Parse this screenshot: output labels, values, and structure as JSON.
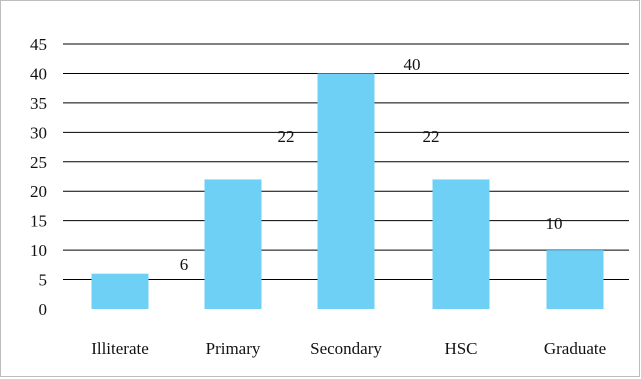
{
  "chart_data": {
    "type": "bar",
    "categories": [
      "Illiterate",
      "Primary",
      "Secondary",
      "HSC",
      "Graduate"
    ],
    "values": [
      6,
      22,
      40,
      22,
      10
    ],
    "data_labels": [
      "6",
      "22",
      "40",
      "22",
      "10"
    ],
    "y_ticks": [
      "0",
      "5",
      "10",
      "15",
      "20",
      "25",
      "30",
      "35",
      "40",
      "45"
    ],
    "ylim": [
      0,
      45
    ],
    "grid": true,
    "legend": "none",
    "bar_color": "#6fd0f6",
    "grid_color": "#000000"
  }
}
